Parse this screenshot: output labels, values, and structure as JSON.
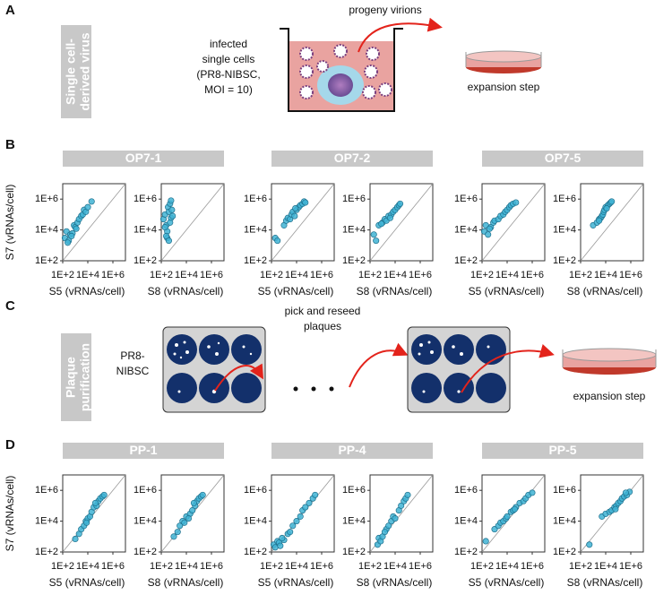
{
  "panel_a": {
    "label": "A",
    "side_label": [
      "Single cell-",
      "derived virus"
    ],
    "cells_text": [
      "infected",
      "single cells",
      "(PR8-NIBSC,",
      "MOI = 10)"
    ],
    "arrow_text": "progeny virions",
    "dish_text": "expansion step"
  },
  "panel_b": {
    "label": "B",
    "headers": [
      "OP7-1",
      "OP7-2",
      "OP7-5"
    ]
  },
  "panel_c": {
    "label": "C",
    "side_label": [
      "Plaque",
      "purification"
    ],
    "source_text": [
      "PR8-",
      "NIBSC"
    ],
    "arrow_text": [
      "pick and reseed",
      "plaques"
    ],
    "dish_text": "expansion step"
  },
  "panel_d": {
    "label": "D",
    "headers": [
      "PP-1",
      "PP-4",
      "PP-5"
    ]
  },
  "chart_data": [
    {
      "type": "scatter",
      "xlabel": "S5 (vRNAs/cell)",
      "ylabel": "S7 (vRNAs/cell)",
      "log": true,
      "color": "#3fb3d3",
      "x": [
        150,
        200,
        300,
        400,
        600,
        800,
        1000,
        1500,
        2000,
        3000,
        4000,
        5000,
        7000,
        10000,
        20000,
        250,
        500,
        1200
      ],
      "values": [
        3000,
        8000,
        2000,
        5000,
        6000,
        20000,
        15000,
        30000,
        50000,
        80000,
        100000,
        200000,
        150000,
        300000,
        700000,
        1500,
        4000,
        12000
      ],
      "xlim": [
        100,
        10000000
      ],
      "ylim": [
        100,
        10000000
      ],
      "xticks": [
        {
          "value": 100,
          "label": "1E+2"
        },
        {
          "value": 10000,
          "label": "1E+4"
        },
        {
          "value": 1000000,
          "label": "1E+6"
        }
      ],
      "yticks": [
        {
          "value": 100,
          "label": "1E+2"
        },
        {
          "value": 10000,
          "label": "1E+4"
        },
        {
          "value": 1000000,
          "label": "1E+6"
        }
      ]
    },
    {
      "type": "scatter",
      "xlabel": "S8 (vRNAs/cell)",
      "log": true,
      "color": "#3fb3d3",
      "x": [
        150,
        200,
        250,
        300,
        350,
        400,
        500,
        600,
        700,
        300,
        250,
        400,
        500,
        200,
        600,
        800
      ],
      "values": [
        50000,
        100000,
        20000,
        8000,
        300000,
        150000,
        500000,
        60000,
        200000,
        3000,
        4000,
        2000,
        30000,
        15000,
        800000,
        80000
      ],
      "xlim": [
        100,
        10000000
      ],
      "ylim": [
        100,
        10000000
      ],
      "xticks": [
        {
          "value": 100,
          "label": "1E+2"
        },
        {
          "value": 10000,
          "label": "1E+4"
        },
        {
          "value": 1000000,
          "label": "1E+6"
        }
      ],
      "yticks": [
        {
          "value": 100,
          "label": "1E+2"
        },
        {
          "value": 10000,
          "label": "1E+4"
        },
        {
          "value": 1000000,
          "label": "1E+6"
        }
      ]
    },
    {
      "type": "scatter",
      "xlabel": "S5 (vRNAs/cell)",
      "log": true,
      "color": "#3fb3d3",
      "x": [
        200,
        300,
        1000,
        1500,
        2000,
        3000,
        4000,
        5000,
        7000,
        10000,
        15000,
        20000,
        30000,
        40000,
        50000,
        8000
      ],
      "values": [
        3000,
        2000,
        20000,
        40000,
        60000,
        50000,
        100000,
        150000,
        80000,
        200000,
        300000,
        400000,
        500000,
        700000,
        600000,
        250000
      ],
      "xlim": [
        100,
        10000000
      ],
      "ylim": [
        100,
        10000000
      ],
      "xticks": [
        {
          "value": 100,
          "label": "1E+2"
        },
        {
          "value": 10000,
          "label": "1E+4"
        },
        {
          "value": 1000000,
          "label": "1E+6"
        }
      ],
      "yticks": [
        {
          "value": 100,
          "label": "1E+2"
        },
        {
          "value": 10000,
          "label": "1E+4"
        },
        {
          "value": 1000000,
          "label": "1E+6"
        }
      ]
    },
    {
      "type": "scatter",
      "xlabel": "S8 (vRNAs/cell)",
      "log": true,
      "color": "#3fb3d3",
      "x": [
        200,
        300,
        500,
        1000,
        1500,
        2000,
        3000,
        5000,
        7000,
        10000,
        15000,
        20000,
        25000,
        4000,
        800
      ],
      "values": [
        5000,
        2000,
        20000,
        30000,
        50000,
        40000,
        80000,
        100000,
        150000,
        200000,
        300000,
        400000,
        500000,
        60000,
        25000
      ],
      "xlim": [
        100,
        10000000
      ],
      "ylim": [
        100,
        10000000
      ],
      "xticks": [
        {
          "value": 100,
          "label": "1E+2"
        },
        {
          "value": 10000,
          "label": "1E+4"
        },
        {
          "value": 1000000,
          "label": "1E+6"
        }
      ],
      "yticks": [
        {
          "value": 100,
          "label": "1E+2"
        },
        {
          "value": 10000,
          "label": "1E+4"
        },
        {
          "value": 1000000,
          "label": "1E+6"
        }
      ]
    },
    {
      "type": "scatter",
      "xlabel": "S5 (vRNAs/cell)",
      "log": true,
      "color": "#3fb3d3",
      "x": [
        150,
        200,
        300,
        500,
        800,
        1000,
        2000,
        3000,
        5000,
        7000,
        10000,
        15000,
        20000,
        30000,
        50000,
        400
      ],
      "values": [
        8000,
        20000,
        5000,
        15000,
        30000,
        40000,
        50000,
        80000,
        100000,
        150000,
        200000,
        300000,
        400000,
        500000,
        600000,
        12000
      ],
      "xlim": [
        100,
        10000000
      ],
      "ylim": [
        100,
        10000000
      ],
      "xticks": [
        {
          "value": 100,
          "label": "1E+2"
        },
        {
          "value": 10000,
          "label": "1E+4"
        },
        {
          "value": 1000000,
          "label": "1E+6"
        }
      ],
      "yticks": [
        {
          "value": 100,
          "label": "1E+2"
        },
        {
          "value": 10000,
          "label": "1E+4"
        },
        {
          "value": 1000000,
          "label": "1E+6"
        }
      ]
    },
    {
      "type": "scatter",
      "xlabel": "S8 (vRNAs/cell)",
      "log": true,
      "color": "#3fb3d3",
      "x": [
        1000,
        2000,
        3000,
        4000,
        5000,
        6000,
        7000,
        8000,
        10000,
        15000,
        20000,
        25000,
        30000,
        3000,
        12000
      ],
      "values": [
        20000,
        30000,
        50000,
        60000,
        80000,
        100000,
        150000,
        200000,
        300000,
        400000,
        500000,
        600000,
        700000,
        40000,
        250000
      ],
      "xlim": [
        100,
        10000000
      ],
      "ylim": [
        100,
        10000000
      ],
      "xticks": [
        {
          "value": 100,
          "label": "1E+2"
        },
        {
          "value": 10000,
          "label": "1E+4"
        },
        {
          "value": 1000000,
          "label": "1E+6"
        }
      ],
      "yticks": [
        {
          "value": 100,
          "label": "1E+2"
        },
        {
          "value": 10000,
          "label": "1E+4"
        },
        {
          "value": 1000000,
          "label": "1E+6"
        }
      ]
    },
    {
      "type": "scatter",
      "xlabel": "S5 (vRNAs/cell)",
      "ylabel": "S7 (vRNAs/cell)",
      "log": true,
      "color": "#3fb3d3",
      "x": [
        1000,
        2000,
        3000,
        5000,
        7000,
        10000,
        15000,
        20000,
        30000,
        50000,
        70000,
        100000,
        150000,
        200000,
        8000,
        40000
      ],
      "values": [
        700,
        1500,
        3000,
        5000,
        10000,
        15000,
        20000,
        40000,
        80000,
        100000,
        200000,
        300000,
        400000,
        500000,
        8000,
        150000
      ],
      "xlim": [
        100,
        10000000
      ],
      "ylim": [
        100,
        10000000
      ],
      "xticks": [
        {
          "value": 100,
          "label": "1E+2"
        },
        {
          "value": 10000,
          "label": "1E+4"
        },
        {
          "value": 1000000,
          "label": "1E+6"
        }
      ],
      "yticks": [
        {
          "value": 100,
          "label": "1E+2"
        },
        {
          "value": 10000,
          "label": "1E+4"
        },
        {
          "value": 1000000,
          "label": "1E+6"
        }
      ]
    },
    {
      "type": "scatter",
      "xlabel": "S8 (vRNAs/cell)",
      "log": true,
      "color": "#3fb3d3",
      "x": [
        1000,
        2000,
        3000,
        5000,
        7000,
        10000,
        20000,
        30000,
        50000,
        70000,
        100000,
        150000,
        200000,
        15000,
        40000
      ],
      "values": [
        1000,
        2000,
        5000,
        10000,
        8000,
        20000,
        30000,
        50000,
        100000,
        200000,
        300000,
        400000,
        500000,
        15000,
        150000
      ],
      "xlim": [
        100,
        10000000
      ],
      "ylim": [
        100,
        10000000
      ],
      "xticks": [
        {
          "value": 100,
          "label": "1E+2"
        },
        {
          "value": 10000,
          "label": "1E+4"
        },
        {
          "value": 1000000,
          "label": "1E+6"
        }
      ],
      "yticks": [
        {
          "value": 100,
          "label": "1E+2"
        },
        {
          "value": 10000,
          "label": "1E+4"
        },
        {
          "value": 1000000,
          "label": "1E+6"
        }
      ]
    },
    {
      "type": "scatter",
      "xlabel": "S5 (vRNAs/cell)",
      "log": true,
      "color": "#3fb3d3",
      "x": [
        150,
        200,
        300,
        400,
        500,
        1000,
        2000,
        3000,
        5000,
        10000,
        20000,
        30000,
        50000,
        100000,
        200000,
        300000,
        700
      ],
      "values": [
        300,
        200,
        500,
        400,
        250,
        600,
        1500,
        2000,
        5000,
        10000,
        20000,
        50000,
        80000,
        150000,
        300000,
        500000,
        800
      ],
      "xlim": [
        100,
        10000000
      ],
      "ylim": [
        100,
        10000000
      ],
      "xticks": [
        {
          "value": 100,
          "label": "1E+2"
        },
        {
          "value": 10000,
          "label": "1E+4"
        },
        {
          "value": 1000000,
          "label": "1E+6"
        }
      ],
      "yticks": [
        {
          "value": 100,
          "label": "1E+2"
        },
        {
          "value": 10000,
          "label": "1E+4"
        },
        {
          "value": 1000000,
          "label": "1E+6"
        }
      ]
    },
    {
      "type": "scatter",
      "xlabel": "S8 (vRNAs/cell)",
      "log": true,
      "color": "#3fb3d3",
      "x": [
        400,
        500,
        700,
        1000,
        2000,
        3000,
        5000,
        7000,
        10000,
        20000,
        30000,
        50000,
        70000,
        100000,
        1500
      ],
      "values": [
        300,
        800,
        500,
        1000,
        3000,
        5000,
        10000,
        20000,
        15000,
        50000,
        100000,
        200000,
        300000,
        500000,
        2000
      ],
      "xlim": [
        100,
        10000000
      ],
      "ylim": [
        100,
        10000000
      ],
      "xticks": [
        {
          "value": 100,
          "label": "1E+2"
        },
        {
          "value": 10000,
          "label": "1E+4"
        },
        {
          "value": 1000000,
          "label": "1E+6"
        }
      ],
      "yticks": [
        {
          "value": 100,
          "label": "1E+2"
        },
        {
          "value": 10000,
          "label": "1E+4"
        },
        {
          "value": 1000000,
          "label": "1E+6"
        }
      ]
    },
    {
      "type": "scatter",
      "xlabel": "S5 (vRNAs/cell)",
      "log": true,
      "color": "#3fb3d3",
      "x": [
        200,
        1000,
        2000,
        3000,
        5000,
        8000,
        10000,
        20000,
        30000,
        50000,
        100000,
        200000,
        300000,
        500000,
        1000000,
        40000
      ],
      "values": [
        500,
        3000,
        5000,
        8000,
        10000,
        15000,
        20000,
        40000,
        50000,
        80000,
        150000,
        200000,
        300000,
        500000,
        700000,
        60000
      ],
      "xlim": [
        100,
        10000000
      ],
      "ylim": [
        100,
        10000000
      ],
      "xticks": [
        {
          "value": 100,
          "label": "1E+2"
        },
        {
          "value": 10000,
          "label": "1E+4"
        },
        {
          "value": 1000000,
          "label": "1E+6"
        }
      ],
      "yticks": [
        {
          "value": 100,
          "label": "1E+2"
        },
        {
          "value": 10000,
          "label": "1E+4"
        },
        {
          "value": 1000000,
          "label": "1E+6"
        }
      ]
    },
    {
      "type": "scatter",
      "xlabel": "S8 (vRNAs/cell)",
      "log": true,
      "color": "#3fb3d3",
      "x": [
        500,
        5000,
        10000,
        20000,
        30000,
        50000,
        70000,
        100000,
        150000,
        200000,
        300000,
        500000,
        800000,
        400000,
        60000
      ],
      "values": [
        300,
        20000,
        30000,
        40000,
        50000,
        80000,
        100000,
        150000,
        200000,
        300000,
        400000,
        500000,
        800000,
        700000,
        60000
      ],
      "xlim": [
        100,
        10000000
      ],
      "ylim": [
        100,
        10000000
      ],
      "xticks": [
        {
          "value": 100,
          "label": "1E+2"
        },
        {
          "value": 10000,
          "label": "1E+4"
        },
        {
          "value": 1000000,
          "label": "1E+6"
        }
      ],
      "yticks": [
        {
          "value": 100,
          "label": "1E+2"
        },
        {
          "value": 10000,
          "label": "1E+4"
        },
        {
          "value": 1000000,
          "label": "1E+6"
        }
      ]
    }
  ]
}
